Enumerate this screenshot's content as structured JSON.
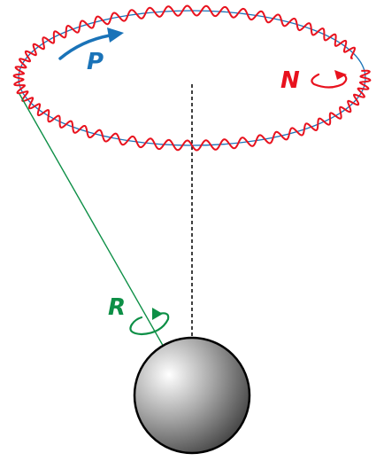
{
  "labels": {
    "precession": "P",
    "nutation": "N",
    "rotation": "R"
  },
  "colors": {
    "precession": "#1a73b8",
    "nutation": "#e8121e",
    "rotation": "#0d8f46",
    "axis": "#000000",
    "sphere_light": "#ffffff",
    "sphere_mid": "#a8a8a8",
    "sphere_dark": "#4a4a4a"
  }
}
